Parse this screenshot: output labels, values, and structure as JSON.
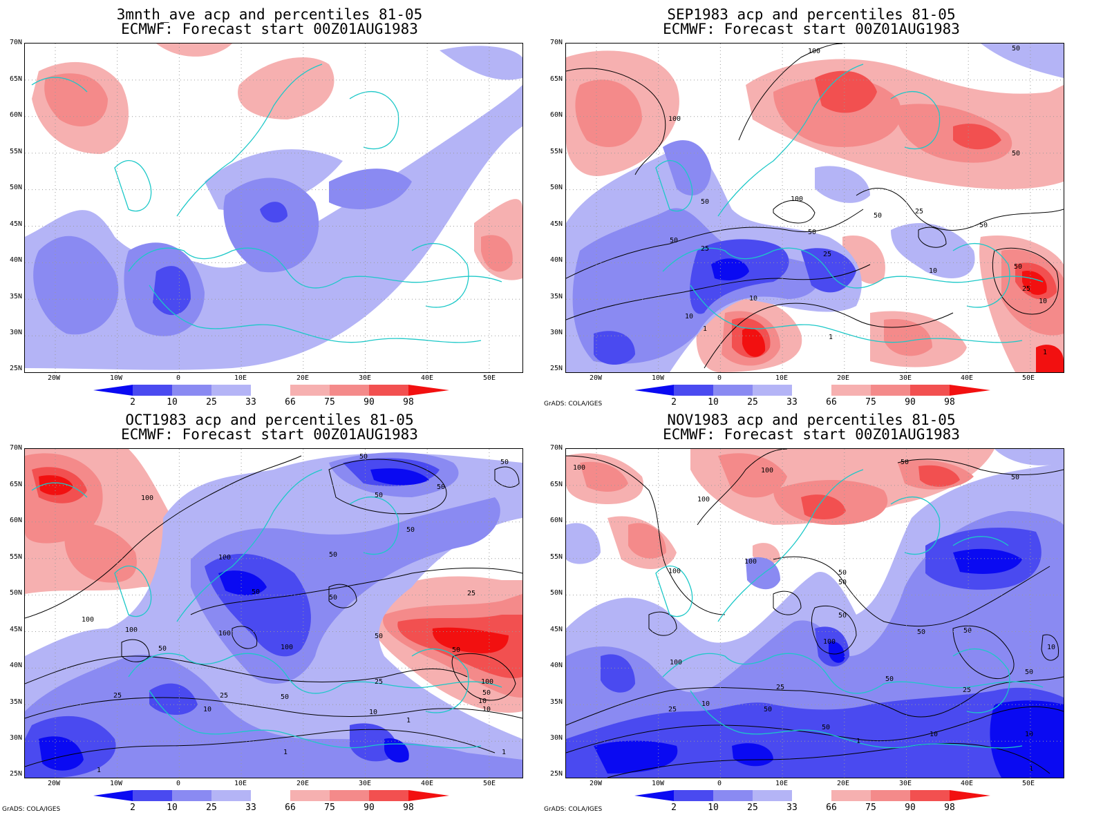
{
  "panels": [
    {
      "title_line1": "3mnth_ave acp and percentiles 81-05",
      "title_line2": "ECMWF: Forecast start 00Z01AUG1983",
      "credit": "",
      "contour_labels": []
    },
    {
      "title_line1": "SEP1983 acp and percentiles 81-05",
      "title_line2": "ECMWF: Forecast start 00Z01AUG1983",
      "credit": "GrADS: COLA/IGES",
      "contour_labels": [
        "100",
        "100",
        "50",
        "100",
        "50",
        "25",
        "50",
        "50",
        "25",
        "50",
        "25",
        "10",
        "10",
        "1",
        "50",
        "25",
        "10",
        "50",
        "1",
        "10",
        "1",
        "50"
      ]
    },
    {
      "title_line1": "OCT1983 acp and percentiles 81-05",
      "title_line2": "ECMWF: Forecast start 00Z01AUG1983",
      "credit": "GrADS: COLA/IGES",
      "contour_labels": [
        "50",
        "50",
        "50",
        "100",
        "50",
        "50",
        "50",
        "100",
        "50",
        "50",
        "100",
        "100",
        "100",
        "100",
        "50",
        "25",
        "50",
        "25",
        "25",
        "10",
        "10",
        "50",
        "100",
        "50",
        "10",
        "1",
        "1",
        "1",
        "50",
        "10",
        "1",
        "25"
      ]
    },
    {
      "title_line1": "NOV1983 acp and percentiles 81-05",
      "title_line2": "ECMWF: Forecast start 00Z01AUG1983",
      "credit": "GrADS: COLA/IGES",
      "contour_labels": [
        "100",
        "100",
        "50",
        "50",
        "100",
        "100",
        "100",
        "50",
        "50",
        "50",
        "50",
        "50",
        "100",
        "100",
        "50",
        "25",
        "10",
        "50",
        "25",
        "50",
        "25",
        "10",
        "1",
        "10",
        "1",
        "50",
        "10"
      ]
    }
  ],
  "lat_labels": [
    "70N",
    "65N",
    "60N",
    "55N",
    "50N",
    "45N",
    "40N",
    "35N",
    "30N",
    "25N"
  ],
  "lon_labels": [
    "20W",
    "10W",
    "0",
    "10E",
    "20E",
    "30E",
    "40E",
    "50E"
  ],
  "colorbar_labels": [
    "2",
    "10",
    "25",
    "33",
    "66",
    "75",
    "90",
    "98"
  ],
  "colors": {
    "blue_dark": "#0a0af2",
    "blue_mid": "#4a4af0",
    "blue_light": "#8a8af2",
    "blue_pale": "#b4b4f6",
    "red_pale": "#f6b0b0",
    "red_light": "#f48a8a",
    "red_mid": "#f25050",
    "red_dark": "#f21010",
    "coast": "#1cc8c8"
  }
}
